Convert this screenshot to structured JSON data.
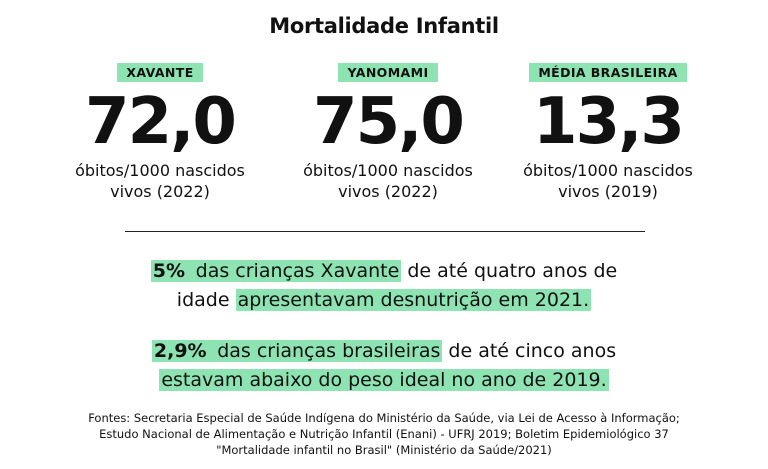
{
  "title": "Mortalidade Infantil",
  "stats": [
    {
      "label": "XAVANTE",
      "value": "72,0",
      "unit_line1": "óbitos/1000 nascidos",
      "unit_line2": "vivos (2022)"
    },
    {
      "label": "YANOMAMI",
      "value": "75,0",
      "unit_line1": "óbitos/1000 nascidos",
      "unit_line2": "vivos (2022)"
    },
    {
      "label": "MÉDIA BRASILEIRA",
      "value": "13,3",
      "unit_line1": "óbitos/1000 nascidos",
      "unit_line2": "vivos (2019)"
    }
  ],
  "facts": [
    {
      "pct": "5%",
      "hl1": "das crianças Xavante",
      "mid": "de até quatro anos de",
      "pre2": "idade",
      "hl2": "apresentavam desnutrição em 2021."
    },
    {
      "pct": "2,9%",
      "hl1": "das crianças brasileiras",
      "mid": "de até cinco anos",
      "hl2": "estavam abaixo do peso ideal no ano de 2019."
    }
  ],
  "sources": [
    "Fontes: Secretaria Especial de Saúde Indígena do Ministério da Saúde, via Lei de Acesso à Informação;",
    "Estudo Nacional de Alimentação e Nutrição Infantil (Enani) - UFRJ 2019; Boletim Epidemiológico 37",
    "\"Mortalidade infantil no Brasil\" (Ministério da Saúde/2021)"
  ],
  "colors": {
    "highlight": "#8ee3b3",
    "text": "#111111",
    "background": "#ffffff"
  }
}
